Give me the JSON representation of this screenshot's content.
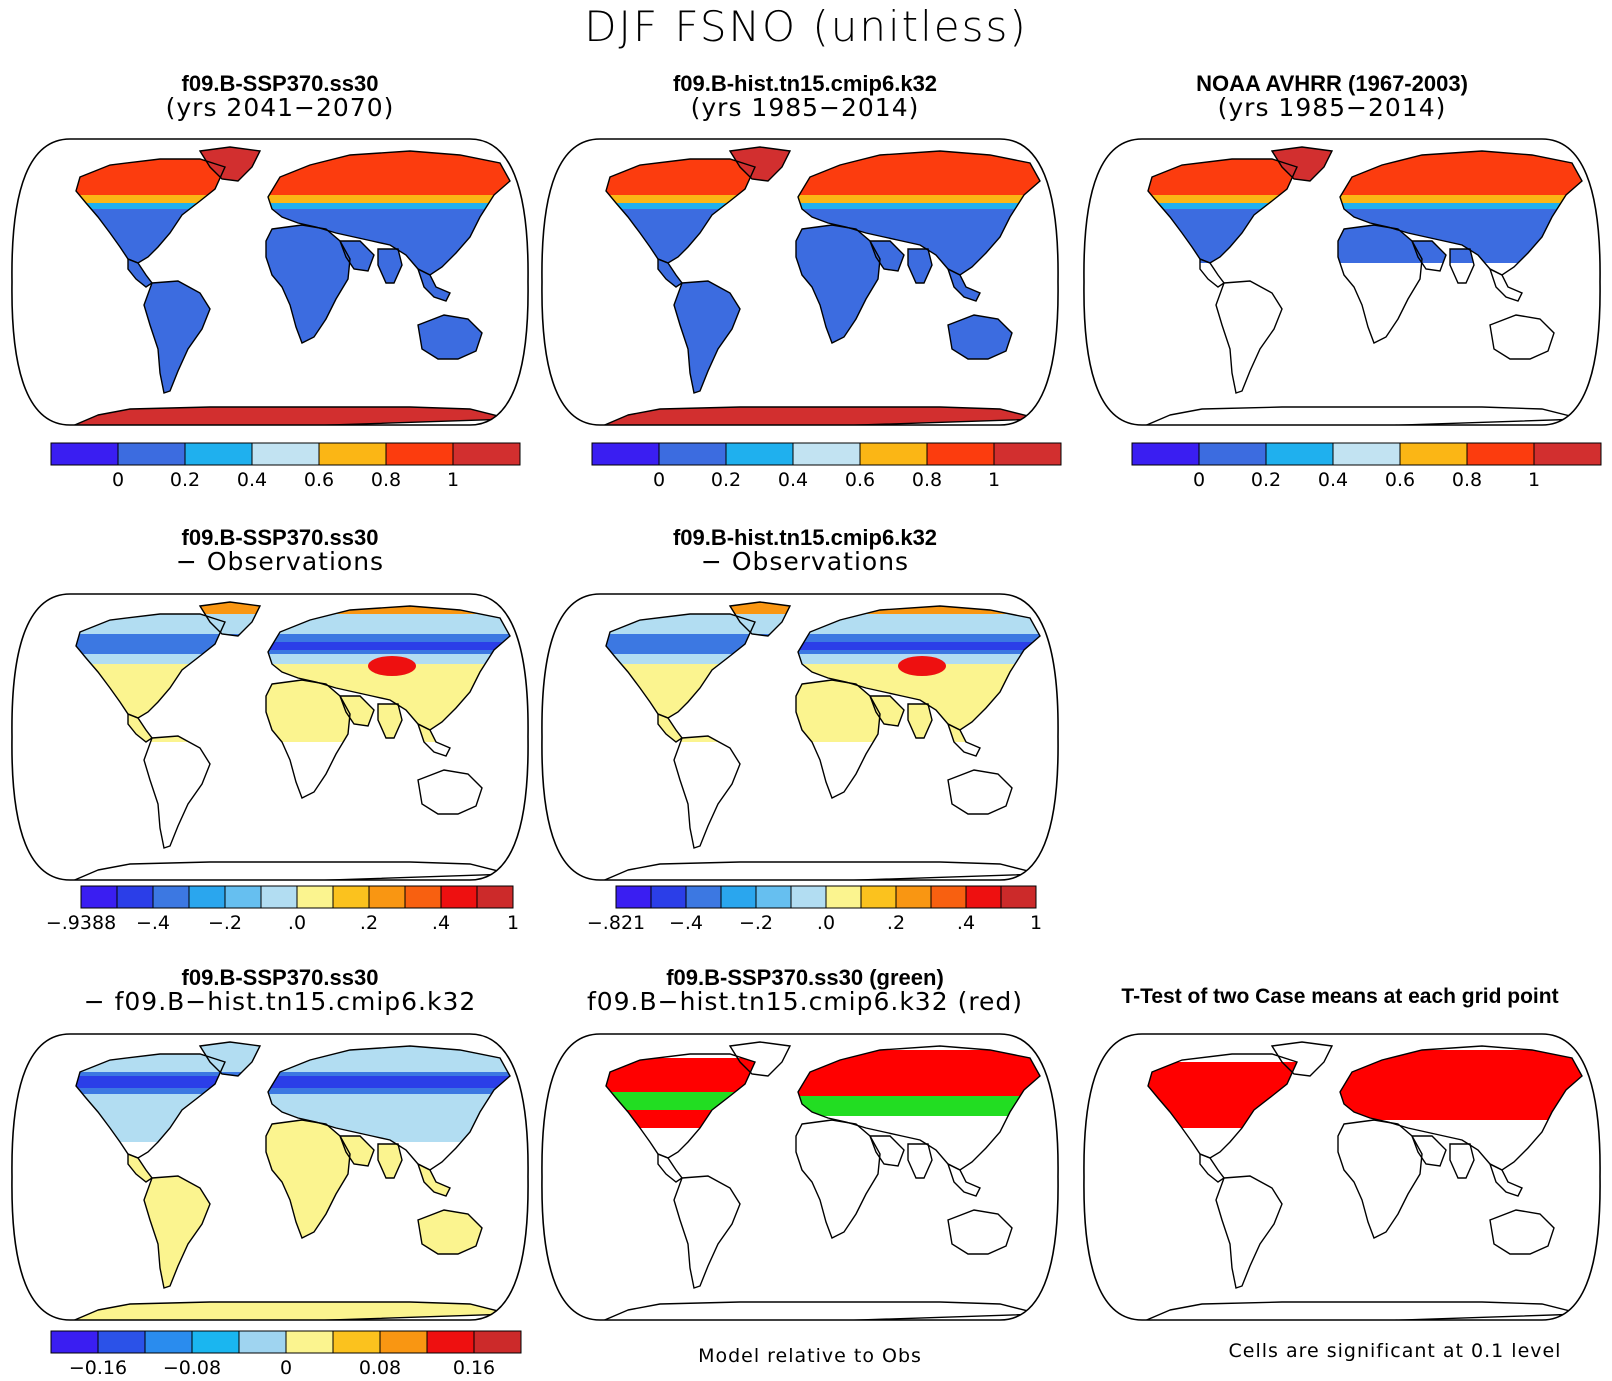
{
  "title": "DJF FSNO (unitless)",
  "panels": {
    "p1": {
      "line1": "f09.B-SSP370.ss30",
      "line2": "(yrs 2041−2070)"
    },
    "p2": {
      "line1": "f09.B-hist.tn15.cmip6.k32",
      "line2": "(yrs 1985−2014)"
    },
    "p3": {
      "line1": "NOAA AVHRR (1967-2003)",
      "line2": "(yrs 1985−2014)"
    },
    "p4": {
      "line1": "f09.B-SSP370.ss30",
      "line2": "− Observations"
    },
    "p5": {
      "line1": "f09.B-hist.tn15.cmip6.k32",
      "line2": "− Observations"
    },
    "p6": {
      "line1": "f09.B-SSP370.ss30",
      "line2": "− f09.B−hist.tn15.cmip6.k32"
    },
    "p7": {
      "line1": "f09.B-SSP370.ss30 (green)",
      "line2": "f09.B−hist.tn15.cmip6.k32 (red)"
    },
    "p8": {
      "line1": "T-Test of two Case means at each grid point"
    }
  },
  "notes": {
    "model_rel_obs": "Model relative to Obs",
    "significance": "Cells are significant at 0.1 level"
  },
  "colorbars": {
    "cb_abs": {
      "colors": [
        "#3a1ef2",
        "#3c6ce0",
        "#1fb0ee",
        "#c2e3f2",
        "#fbb615",
        "#fc3c0e",
        "#d22f2f"
      ],
      "labels": [
        "0",
        "0.2",
        "0.4",
        "0.6",
        "0.8",
        "1"
      ]
    },
    "cb_diff1": {
      "colors": [
        "#3a1ef2",
        "#2b3ee8",
        "#3c78e2",
        "#2aa6ee",
        "#66bff0",
        "#b2ddf2",
        "#fbf48f",
        "#fbc21e",
        "#f99612",
        "#f86010",
        "#ee1010",
        "#cc2a2a"
      ],
      "labels": [
        "−.9388",
        "−.4",
        "−.2",
        ".0",
        ".2",
        ".4",
        "1"
      ]
    },
    "cb_diff2": {
      "colors": [
        "#3a1ef2",
        "#2b3ee8",
        "#3c78e2",
        "#2aa6ee",
        "#66bff0",
        "#b2ddf2",
        "#fbf48f",
        "#fbc21e",
        "#f99612",
        "#f86010",
        "#ee1010",
        "#cc2a2a"
      ],
      "labels": [
        "−.821",
        "−.4",
        "−.2",
        ".0",
        ".2",
        ".4",
        "1"
      ]
    },
    "cb_diff3": {
      "colors": [
        "#3a1ef2",
        "#2b52e8",
        "#2a8cee",
        "#1ab6f0",
        "#9fd4f0",
        "#fbf48f",
        "#fbc21e",
        "#f99612",
        "#ee1010",
        "#cc2a2a"
      ],
      "labels": [
        "−0.16",
        "−0.08",
        "0",
        "0.08",
        "0.16"
      ]
    }
  },
  "map_colors": {
    "land": "#3c6ce0",
    "snow_high": "#fc3c0e",
    "snow_max": "#d22f2f",
    "snow_mid": "#fbb615",
    "snow_low": "#1fb0ee",
    "diff_yellow": "#fbf48f",
    "diff_lightblue": "#b2ddf2",
    "diff_blue": "#3c78e2",
    "diff_darkblue": "#2b3ee8",
    "diff_red": "#ee1010",
    "diff_orange": "#f99612",
    "sig_red": "#ff0000",
    "sig_green": "#22dd22"
  }
}
